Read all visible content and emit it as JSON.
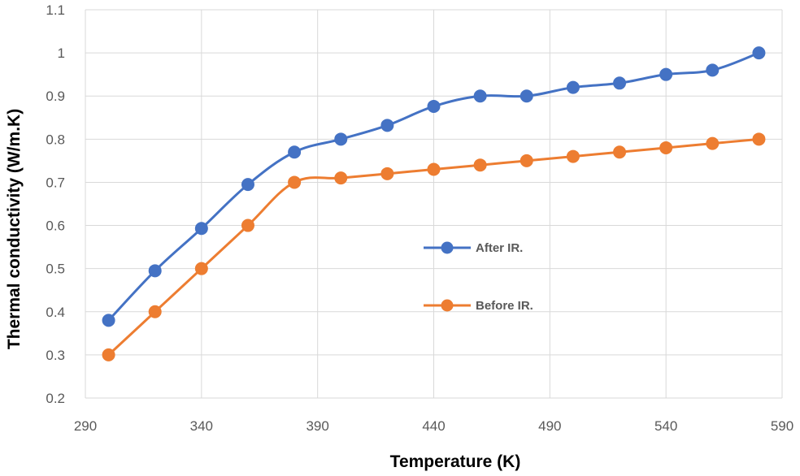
{
  "chart_data": {
    "type": "line",
    "title": "",
    "xlabel": "Temperature (K)",
    "ylabel": "Thermal conductivity (W/m.K)",
    "xlim": [
      290,
      590
    ],
    "ylim": [
      0.2,
      1.1
    ],
    "x_ticks": [
      "290",
      "340",
      "390",
      "440",
      "490",
      "540",
      "590"
    ],
    "y_ticks": [
      "0.2",
      "0.3",
      "0.4",
      "0.5",
      "0.6",
      "0.7",
      "0.8",
      "0.9",
      "1",
      "1.1"
    ],
    "grid": true,
    "legend_position": "center-right",
    "x": [
      300,
      320,
      340,
      360,
      380,
      400,
      420,
      440,
      460,
      480,
      500,
      520,
      540,
      560,
      580
    ],
    "series": [
      {
        "name": "After IR.",
        "color": "#4472C4",
        "values": [
          0.38,
          0.495,
          0.593,
          0.695,
          0.77,
          0.8,
          0.832,
          0.876,
          0.9,
          0.9,
          0.92,
          0.93,
          0.95,
          0.96,
          1.0
        ]
      },
      {
        "name": "Before IR.",
        "color": "#ED7D31",
        "values": [
          0.3,
          0.4,
          0.5,
          0.6,
          0.7,
          0.71,
          0.72,
          0.73,
          0.74,
          0.75,
          0.76,
          0.77,
          0.78,
          0.79,
          0.8
        ]
      }
    ]
  }
}
